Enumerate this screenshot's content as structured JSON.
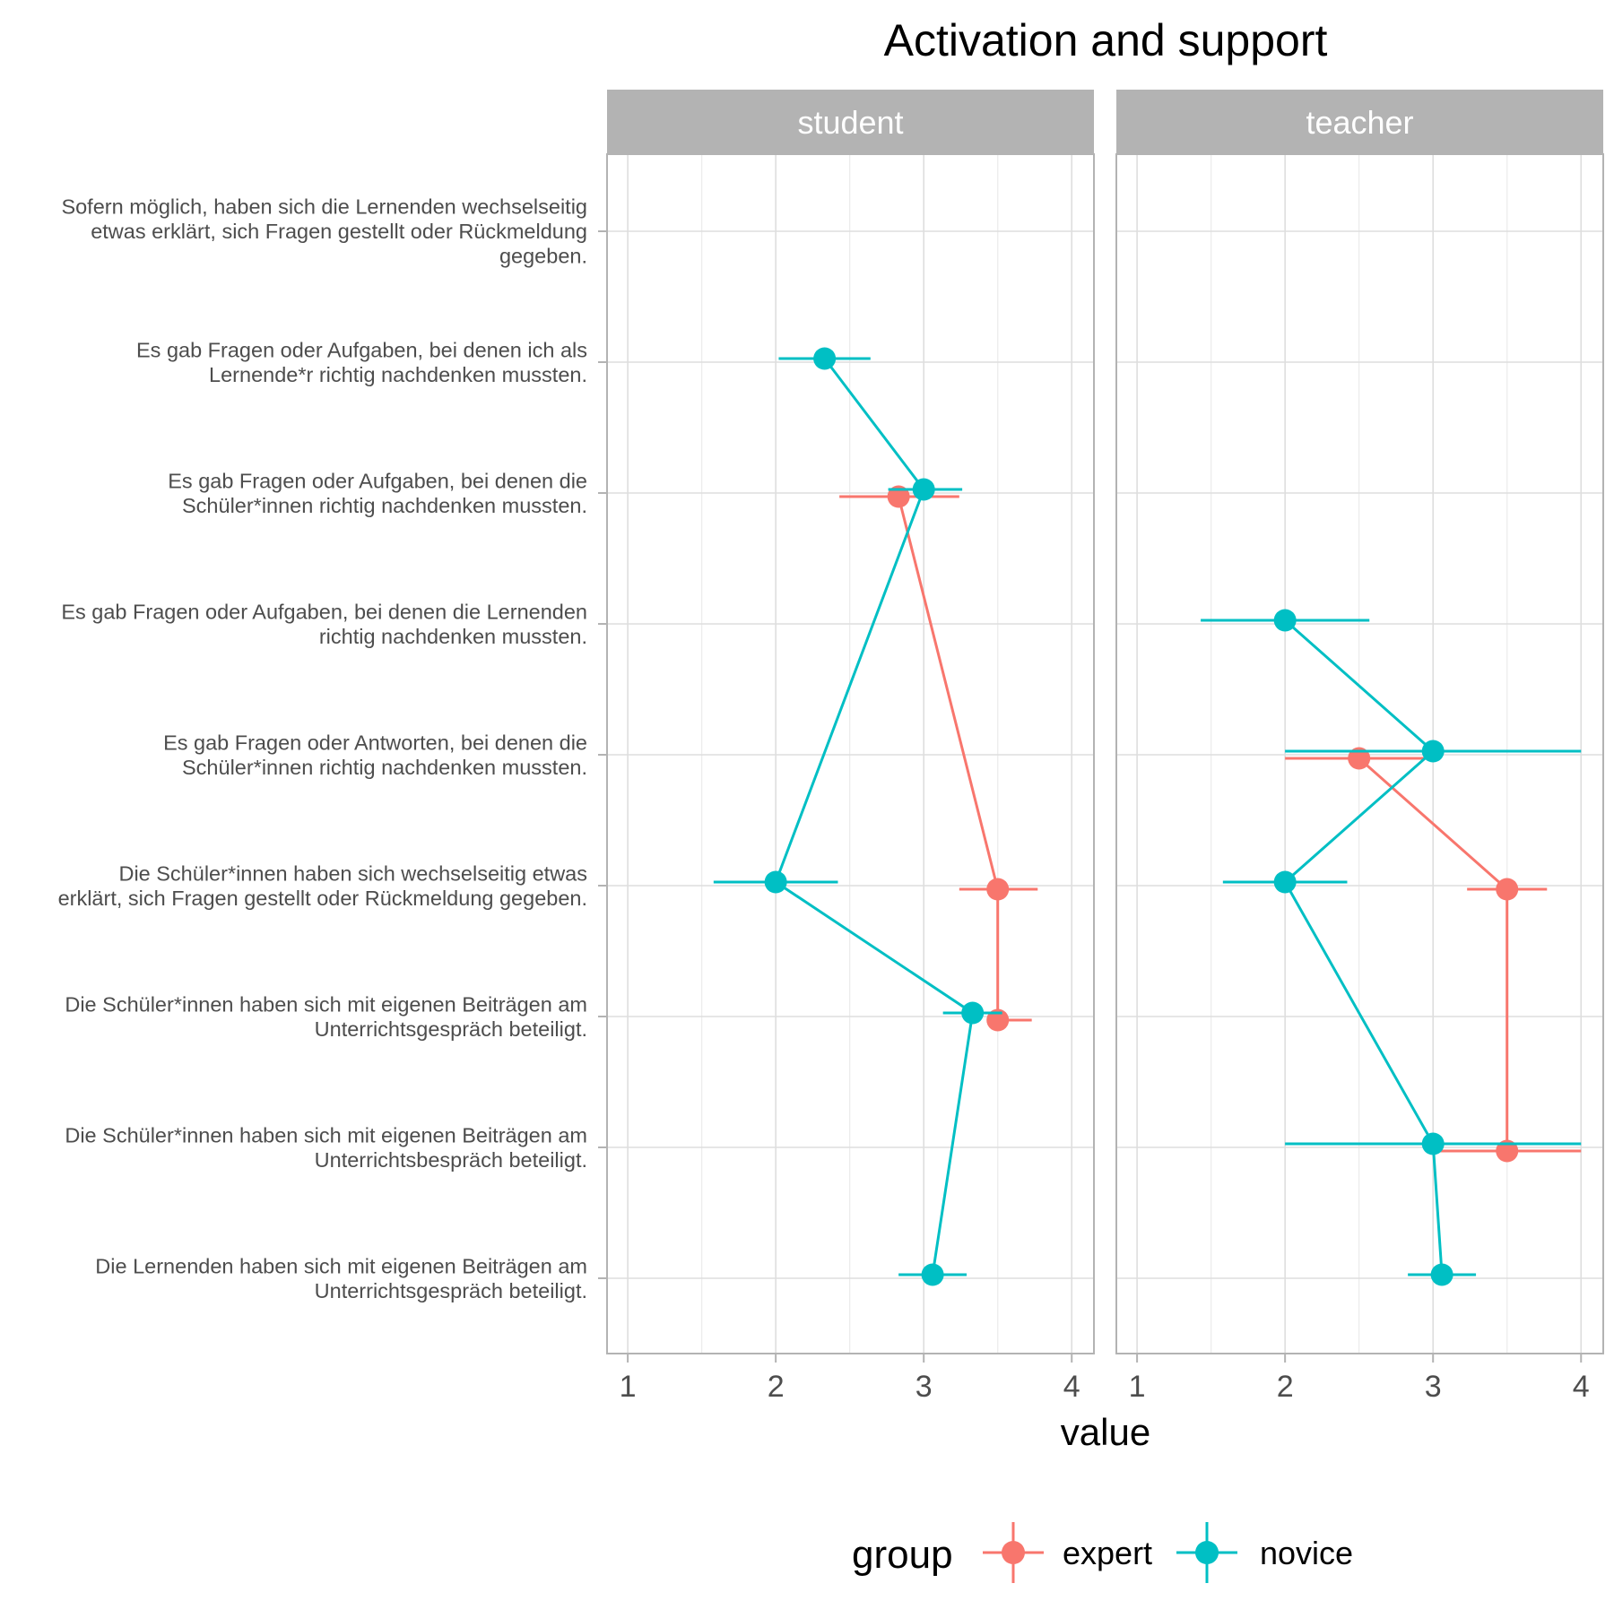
{
  "chart_data": {
    "type": "scatter",
    "title": "Activation and support",
    "xlabel": "value",
    "ylabel": "",
    "xlim": [
      0.86,
      4.15
    ],
    "x_ticks": [
      "1",
      "2",
      "3",
      "4"
    ],
    "grid": true,
    "legend": {
      "title": "group",
      "position": "bottom",
      "entries": [
        "expert",
        "novice"
      ]
    },
    "colors": {
      "expert": "#F8766D",
      "novice": "#00BFC4"
    },
    "panels": [
      "student",
      "teacher"
    ],
    "categories": [
      "Sofern möglich, haben sich die Lernenden wechselseitig etwas erklärt, sich Fragen gestellt oder Rückmeldung gegeben.",
      "Es gab Fragen oder Aufgaben, bei denen ich als Lernende*r richtig nachdenken mussten.",
      "Es gab Fragen oder Aufgaben, bei denen die Schüler*innen richtig nachdenken mussten.",
      "Es gab Fragen oder Aufgaben, bei denen die Lernenden richtig nachdenken mussten.",
      "Es gab Fragen oder Antworten, bei denen die Schüler*innen richtig nachdenken mussten.",
      "Die Schüler*innen haben sich wechselseitig etwas erklärt, sich Fragen gestellt oder Rückmeldung gegeben.",
      "Die Schüler*innen haben sich mit eigenen Beiträgen am Unterrichtsgespräch beteiligt.",
      "Die Schüler*innen haben sich mit eigenen Beiträgen am Unterrichtsbespräch beteiligt.",
      "Die Lernenden haben sich mit eigenen Beiträgen am Unterrichtsgespräch beteiligt."
    ],
    "category_lines": [
      [
        "Sofern möglich, haben sich die Lernenden wechselseitig",
        "etwas erklärt, sich Fragen gestellt oder Rückmeldung",
        "gegeben."
      ],
      [
        "Es gab Fragen oder Aufgaben, bei denen ich als",
        "Lernende*r richtig nachdenken mussten."
      ],
      [
        "Es gab Fragen oder Aufgaben, bei denen die",
        "Schüler*innen richtig nachdenken mussten."
      ],
      [
        "Es gab Fragen oder Aufgaben, bei denen die Lernenden",
        "richtig nachdenken mussten."
      ],
      [
        "Es gab Fragen oder Antworten, bei denen die",
        "Schüler*innen richtig nachdenken mussten."
      ],
      [
        "Die Schüler*innen haben sich wechselseitig etwas",
        "erklärt, sich Fragen gestellt oder Rückmeldung gegeben."
      ],
      [
        "Die Schüler*innen haben sich mit eigenen Beiträgen am",
        "Unterrichtsgespräch beteiligt."
      ],
      [
        "Die Schüler*innen haben sich mit eigenen Beiträgen am",
        "Unterrichtsbespräch beteiligt."
      ],
      [
        "Die Lernenden haben sich mit eigenen Beiträgen am",
        "Unterrichtsgespräch beteiligt."
      ]
    ],
    "series": [
      {
        "panel": "student",
        "name": "expert",
        "points": [
          {
            "category": 2,
            "x": 2.83,
            "xmin": 2.43,
            "xmax": 3.24
          },
          {
            "category": 5,
            "x": 3.5,
            "xmin": 3.24,
            "xmax": 3.77
          },
          {
            "category": 6,
            "x": 3.5,
            "xmin": 3.5,
            "xmax": 3.73
          }
        ]
      },
      {
        "panel": "student",
        "name": "novice",
        "points": [
          {
            "category": 1,
            "x": 2.33,
            "xmin": 2.02,
            "xmax": 2.64
          },
          {
            "category": 2,
            "x": 3.0,
            "xmin": 2.76,
            "xmax": 3.26
          },
          {
            "category": 5,
            "x": 2.0,
            "xmin": 1.58,
            "xmax": 2.42
          },
          {
            "category": 6,
            "x": 3.33,
            "xmin": 3.13,
            "xmax": 3.53
          },
          {
            "category": 8,
            "x": 3.06,
            "xmin": 2.83,
            "xmax": 3.29
          }
        ]
      },
      {
        "panel": "teacher",
        "name": "expert",
        "points": [
          {
            "category": 4,
            "x": 2.5,
            "xmin": 2.0,
            "xmax": 3.0
          },
          {
            "category": 5,
            "x": 3.5,
            "xmin": 3.23,
            "xmax": 3.77
          },
          {
            "category": 7,
            "x": 3.5,
            "xmin": 3.0,
            "xmax": 4.0
          }
        ]
      },
      {
        "panel": "teacher",
        "name": "novice",
        "points": [
          {
            "category": 3,
            "x": 2.0,
            "xmin": 1.43,
            "xmax": 2.57
          },
          {
            "category": 4,
            "x": 3.0,
            "xmin": 2.0,
            "xmax": 4.0
          },
          {
            "category": 5,
            "x": 2.0,
            "xmin": 1.58,
            "xmax": 2.42
          },
          {
            "category": 7,
            "x": 3.0,
            "xmin": 2.0,
            "xmax": 4.0
          },
          {
            "category": 8,
            "x": 3.06,
            "xmin": 2.83,
            "xmax": 3.29
          }
        ]
      }
    ]
  }
}
